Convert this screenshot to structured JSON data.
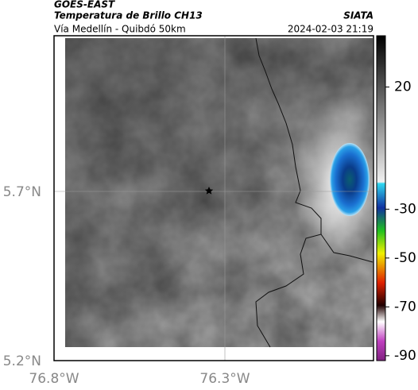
{
  "header": {
    "source": "GOES-EAST",
    "title": "Temperatura de Brillo CH13",
    "subtitle": "Vía Medellín - Quibdó 50km",
    "brand": "SIATA",
    "datetime": "2024-02-03 21:19"
  },
  "map": {
    "lat_labels": [
      "5.7°N",
      "5.2°N"
    ],
    "lon_labels": [
      "76.8°W",
      "76.3°W"
    ]
  },
  "colorbar": {
    "lim": [
      -92,
      41
    ],
    "ticks": [
      20,
      -30,
      -50,
      -70,
      -90
    ]
  }
}
